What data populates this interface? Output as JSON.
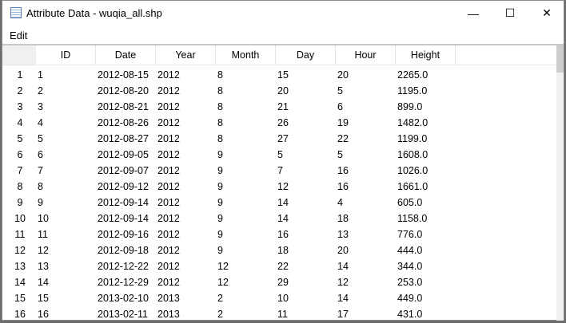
{
  "window": {
    "title": "Attribute Data - wuqia_all.shp",
    "minimize": "—",
    "maximize": "☐",
    "close": "✕",
    "icon": "table-icon"
  },
  "menu": {
    "edit": "Edit"
  },
  "table": {
    "columns": [
      "ID",
      "Date",
      "Year",
      "Month",
      "Day",
      "Hour",
      "Height"
    ],
    "rows": [
      [
        "1",
        "1",
        "2012-08-15",
        "2012",
        "8",
        "15",
        "20",
        "2265.0"
      ],
      [
        "2",
        "2",
        "2012-08-20",
        "2012",
        "8",
        "20",
        "5",
        "1195.0"
      ],
      [
        "3",
        "3",
        "2012-08-21",
        "2012",
        "8",
        "21",
        "6",
        "899.0"
      ],
      [
        "4",
        "4",
        "2012-08-26",
        "2012",
        "8",
        "26",
        "19",
        "1482.0"
      ],
      [
        "5",
        "5",
        "2012-08-27",
        "2012",
        "8",
        "27",
        "22",
        "1199.0"
      ],
      [
        "6",
        "6",
        "2012-09-05",
        "2012",
        "9",
        "5",
        "5",
        "1608.0"
      ],
      [
        "7",
        "7",
        "2012-09-07",
        "2012",
        "9",
        "7",
        "16",
        "1026.0"
      ],
      [
        "8",
        "8",
        "2012-09-12",
        "2012",
        "9",
        "12",
        "16",
        "1661.0"
      ],
      [
        "9",
        "9",
        "2012-09-14",
        "2012",
        "9",
        "14",
        "4",
        "605.0"
      ],
      [
        "10",
        "10",
        "2012-09-14",
        "2012",
        "9",
        "14",
        "18",
        "1158.0"
      ],
      [
        "11",
        "11",
        "2012-09-16",
        "2012",
        "9",
        "16",
        "13",
        "776.0"
      ],
      [
        "12",
        "12",
        "2012-09-18",
        "2012",
        "9",
        "18",
        "20",
        "444.0"
      ],
      [
        "13",
        "13",
        "2012-12-22",
        "2012",
        "12",
        "22",
        "14",
        "344.0"
      ],
      [
        "14",
        "14",
        "2012-12-29",
        "2012",
        "12",
        "29",
        "12",
        "253.0"
      ],
      [
        "15",
        "15",
        "2013-02-10",
        "2013",
        "2",
        "10",
        "14",
        "449.0"
      ],
      [
        "16",
        "16",
        "2013-02-11",
        "2013",
        "2",
        "11",
        "17",
        "431.0"
      ]
    ]
  }
}
